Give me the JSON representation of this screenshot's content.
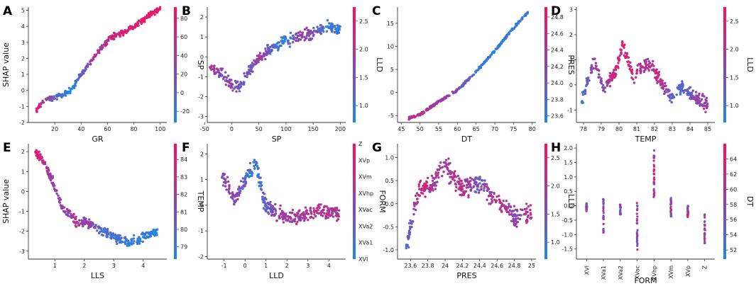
{
  "figure": {
    "colors": {
      "low": "#1e88e5",
      "mid": "#8e44ad",
      "high": "#ff0d57"
    }
  },
  "chart_data": [
    {
      "type": "scatter",
      "panel": "A",
      "xlabel": "GR",
      "ylabel": "SHAP value",
      "color_by": "SP",
      "xlim": [
        0,
        105
      ],
      "ylim": [
        -2,
        5.2
      ],
      "xticks": [
        20,
        40,
        60,
        80,
        100
      ],
      "yticks": [
        -2,
        -1,
        0,
        1,
        2,
        3,
        4,
        5
      ],
      "cb_ticks": [
        -20,
        0,
        20,
        40,
        60,
        80
      ],
      "cb_range": [
        -32,
        92
      ],
      "curve": [
        [
          6,
          -1.3,
          0.9
        ],
        [
          12,
          -0.6,
          0.6
        ],
        [
          22,
          -0.4,
          0.25
        ],
        [
          32,
          0.0,
          -0.1
        ],
        [
          40,
          1.0,
          0.3
        ],
        [
          50,
          2.1,
          0.6
        ],
        [
          62,
          3.3,
          0.75
        ],
        [
          75,
          3.7,
          0.8
        ],
        [
          90,
          4.6,
          0.9
        ],
        [
          100,
          5.1,
          0.95
        ]
      ],
      "curve_noise": 0.45,
      "n": 340
    },
    {
      "type": "scatter",
      "panel": "B",
      "xlabel": "SP",
      "ylabel": "",
      "color_by": "LLD",
      "xlim": [
        -45,
        210
      ],
      "ylim": [
        -3.3,
        2.5
      ],
      "xticks": [
        -50,
        0,
        50,
        100,
        150,
        200
      ],
      "yticks": [
        -3,
        -2,
        -1,
        0,
        1,
        2
      ],
      "cb_ticks": [
        1.0,
        1.5,
        2.0,
        2.5
      ],
      "cb_range": [
        0.7,
        2.75
      ],
      "curve": [
        [
          -40,
          -0.6,
          0.7
        ],
        [
          -20,
          -0.8,
          0.5
        ],
        [
          0,
          -1.4,
          0.5
        ],
        [
          10,
          -1.6,
          0.4
        ],
        [
          30,
          -0.8,
          0.35
        ],
        [
          55,
          0.1,
          0.55
        ],
        [
          80,
          0.5,
          0.2
        ],
        [
          95,
          0.8,
          0.05
        ],
        [
          130,
          1.0,
          0.6
        ],
        [
          175,
          1.5,
          0.15
        ],
        [
          200,
          1.4,
          0.1
        ]
      ],
      "curve_noise": 0.75,
      "n": 360
    },
    {
      "type": "scatter",
      "panel": "C",
      "xlabel": "DT",
      "ylabel": "",
      "color_by": "PRES",
      "xlim": [
        44,
        81
      ],
      "ylim": [
        -6.5,
        18.5
      ],
      "xticks": [
        45,
        50,
        55,
        60,
        65,
        70,
        75,
        80
      ],
      "yticks": [
        -5,
        0,
        5,
        10,
        15
      ],
      "cb_ticks": [
        23.6,
        23.8,
        24.0,
        24.2,
        24.4,
        24.6,
        24.8
      ],
      "cb_range": [
        23.52,
        24.92
      ],
      "curve": [
        [
          47,
          -5.6,
          0.6
        ],
        [
          50,
          -4.8,
          0.7
        ],
        [
          55,
          -2.0,
          0.55
        ],
        [
          60,
          0.5,
          0.45
        ],
        [
          65,
          4.5,
          0.2
        ],
        [
          70,
          9.0,
          0.1
        ],
        [
          75,
          14.0,
          0.1
        ],
        [
          79,
          17.5,
          0.1
        ]
      ],
      "curve_noise": 0.7,
      "n": 340
    },
    {
      "type": "scatter",
      "panel": "D",
      "xlabel": "TEMP",
      "ylabel": "",
      "color_by": "LLD",
      "xlim": [
        77.6,
        85.4
      ],
      "ylim": [
        -1.5,
        3.1
      ],
      "xticks": [
        78,
        79,
        80,
        81,
        82,
        83,
        84,
        85
      ],
      "yticks": [
        -1,
        0,
        1,
        2,
        3
      ],
      "cb_ticks": [
        1.0,
        1.5,
        2.0,
        2.5
      ],
      "cb_range": [
        0.7,
        2.75
      ],
      "curve": [
        [
          77.9,
          -0.6,
          0.1
        ],
        [
          78.6,
          1.0,
          0.6
        ],
        [
          79.1,
          -0.2,
          0.5
        ],
        [
          79.8,
          0.5,
          0.8
        ],
        [
          80.2,
          1.6,
          0.85
        ],
        [
          80.8,
          0.3,
          0.7
        ],
        [
          81.6,
          0.9,
          0.6
        ],
        [
          82.3,
          0.2,
          0.75
        ],
        [
          82.9,
          -0.5,
          0.3
        ],
        [
          83.5,
          -0.1,
          0.2
        ],
        [
          84.3,
          -0.5,
          0.5
        ],
        [
          85.0,
          -0.8,
          0.6
        ]
      ],
      "curve_noise": 0.7,
      "n": 380
    },
    {
      "type": "scatter",
      "panel": "E",
      "xlabel": "LLS",
      "ylabel": "SHAP value",
      "color_by": "TEMP",
      "xlim": [
        0.1,
        4.8
      ],
      "ylim": [
        -3.4,
        2.4
      ],
      "xticks": [
        1,
        2,
        3,
        4
      ],
      "yticks": [
        -3,
        -2,
        -1,
        0,
        1,
        2
      ],
      "cb_ticks": [
        79,
        80,
        81,
        82,
        83,
        84
      ],
      "cb_range": [
        78.3,
        84.9
      ],
      "curve": [
        [
          0.3,
          2.0,
          0.95
        ],
        [
          0.6,
          1.6,
          0.7
        ],
        [
          1.0,
          0.2,
          0.5
        ],
        [
          1.3,
          -0.9,
          0.55
        ],
        [
          1.7,
          -1.5,
          0.6
        ],
        [
          2.2,
          -1.6,
          0.5
        ],
        [
          2.6,
          -2.0,
          0.2
        ],
        [
          3.5,
          -2.6,
          0.1
        ],
        [
          4.5,
          -2.0,
          0.05
        ]
      ],
      "curve_noise": 0.6,
      "n": 360
    },
    {
      "type": "scatter",
      "panel": "F",
      "xlabel": "LLD",
      "ylabel": "",
      "color_by": "FORM",
      "xlim": [
        -1.8,
        4.8
      ],
      "ylim": [
        -2.1,
        2.4
      ],
      "xticks": [
        -1,
        0,
        1,
        2,
        3,
        4
      ],
      "yticks": [
        -2,
        -1,
        0,
        1,
        2
      ],
      "cb_labels": [
        "XVI",
        "XVa1",
        "XVa2",
        "XVac",
        "XVhp",
        "XVm",
        "XVp",
        "Z"
      ],
      "curve": [
        [
          -1.1,
          1.2,
          0.5
        ],
        [
          -0.5,
          0.2,
          0.5
        ],
        [
          0.5,
          1.7,
          0.1
        ],
        [
          1.0,
          -0.1,
          0.3
        ],
        [
          1.5,
          -0.3,
          0.5
        ],
        [
          2.0,
          -0.5,
          0.6
        ],
        [
          2.6,
          -0.5,
          0.6
        ],
        [
          3.5,
          -0.2,
          0.7
        ],
        [
          4.5,
          -0.3,
          0.6
        ]
      ],
      "curve_noise": 0.8,
      "n": 380
    },
    {
      "type": "scatter",
      "panel": "G",
      "xlabel": "PRES",
      "ylabel": "",
      "color_by": "LLD",
      "xlim": [
        23.45,
        25.05
      ],
      "ylim": [
        -1.2,
        1.3
      ],
      "xticks": [
        23.6,
        23.8,
        24.0,
        24.2,
        24.4,
        24.6,
        24.8,
        25.0
      ],
      "yticks": [
        -1.0,
        -0.5,
        0.0,
        0.5,
        1.0
      ],
      "cb_ticks": [
        1.0,
        1.5,
        2.0,
        2.5
      ],
      "cb_range": [
        0.7,
        2.75
      ],
      "curve": [
        [
          23.55,
          -0.9,
          0.2
        ],
        [
          23.7,
          0.3,
          0.8
        ],
        [
          23.85,
          0.4,
          0.6
        ],
        [
          24.0,
          0.85,
          0.6
        ],
        [
          24.2,
          0.3,
          0.7
        ],
        [
          24.4,
          0.45,
          0.35
        ],
        [
          24.6,
          0.1,
          0.75
        ],
        [
          24.8,
          -0.3,
          0.5
        ],
        [
          25.0,
          -0.2,
          0.7
        ]
      ],
      "curve_noise": 0.55,
      "n": 380
    },
    {
      "type": "strip",
      "panel": "H",
      "xlabel": "FORM",
      "ylabel": "",
      "color_by": "DT",
      "categories": [
        "XVI",
        "XVa1",
        "XVa2",
        "XVac",
        "XVhp",
        "XVm",
        "XVp",
        "Z"
      ],
      "ranges": [
        [
          -0.2,
          0.1
        ],
        [
          -1.0,
          0.35
        ],
        [
          -0.3,
          0.05
        ],
        [
          -1.6,
          0.1
        ],
        [
          0.3,
          1.95
        ],
        [
          -0.4,
          0.3
        ],
        [
          -0.4,
          0.0
        ],
        [
          -1.3,
          -0.3
        ]
      ],
      "ylim": [
        -1.85,
        2.15
      ],
      "yticks": [
        -1.5,
        -1.0,
        -0.5,
        0.0,
        0.5,
        1.0,
        1.5,
        2.0
      ],
      "cb_ticks": [
        52,
        54,
        56,
        58,
        60,
        62,
        64
      ],
      "cb_range": [
        50.8,
        66
      ],
      "n": 240
    }
  ]
}
